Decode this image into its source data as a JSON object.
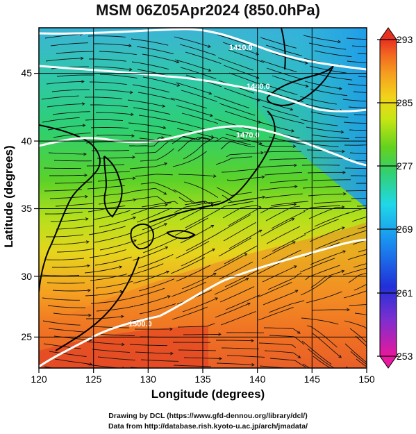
{
  "title": "MSM 06Z05Apr2024 (850.0hPa)",
  "x_axis": {
    "label": "Longitude (degrees)",
    "ticks": [
      "120",
      "125",
      "130",
      "135",
      "140",
      "145",
      "150"
    ],
    "range": [
      120,
      150
    ]
  },
  "y_axis": {
    "label": "Latitude  (degrees)",
    "ticks": [
      "25",
      "30",
      "35",
      "40",
      "45"
    ],
    "range": [
      22.4,
      47.6
    ]
  },
  "colorbar": {
    "labels": [
      "293",
      "285",
      "277",
      "269",
      "261",
      "253"
    ],
    "range": [
      253,
      293
    ],
    "colors": [
      "#e8189c",
      "#7a2fd0",
      "#2030d8",
      "#1a8ef0",
      "#20d8e8",
      "#32d070",
      "#64d21e",
      "#c8e614",
      "#f2d21a",
      "#f5a020",
      "#f26a20",
      "#e83020"
    ]
  },
  "contours": [
    {
      "label": "1440.0",
      "color": "#ffffff"
    },
    {
      "label": "1470.0",
      "color": "#ffffff"
    },
    {
      "label": "1500.0",
      "color": "#ffffff"
    }
  ],
  "credits": {
    "line1": "Drawing by DCL (https://www.gfd-dennou.org/library/dcl/)",
    "line2": "Data from http://database.rish.kyoto-u.ac.jp/arch/jmadata/"
  }
}
